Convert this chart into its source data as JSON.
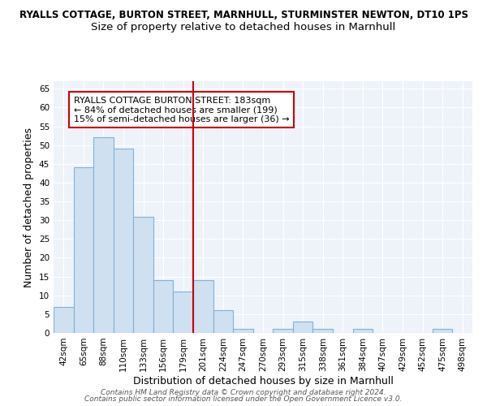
{
  "title": "RYALLS COTTAGE, BURTON STREET, MARNHULL, STURMINSTER NEWTON, DT10 1PS",
  "subtitle": "Size of property relative to detached houses in Marnhull",
  "xlabel": "Distribution of detached houses by size in Marnhull",
  "ylabel": "Number of detached properties",
  "categories": [
    "42sqm",
    "65sqm",
    "88sqm",
    "110sqm",
    "133sqm",
    "156sqm",
    "179sqm",
    "201sqm",
    "224sqm",
    "247sqm",
    "270sqm",
    "293sqm",
    "315sqm",
    "338sqm",
    "361sqm",
    "384sqm",
    "407sqm",
    "429sqm",
    "452sqm",
    "475sqm",
    "498sqm"
  ],
  "values": [
    7,
    44,
    52,
    49,
    31,
    14,
    11,
    14,
    6,
    1,
    0,
    1,
    3,
    1,
    0,
    1,
    0,
    0,
    0,
    1,
    0
  ],
  "bar_color": "#cfe0f0",
  "bar_edge_color": "#7fb2d8",
  "red_line_x": 6.5,
  "red_line_color": "#cc0000",
  "annotation_text": "RYALLS COTTAGE BURTON STREET: 183sqm\n← 84% of detached houses are smaller (199)\n15% of semi-detached houses are larger (36) →",
  "annotation_box_color": "white",
  "annotation_box_edge_color": "#cc0000",
  "ylim": [
    0,
    67
  ],
  "yticks": [
    0,
    5,
    10,
    15,
    20,
    25,
    30,
    35,
    40,
    45,
    50,
    55,
    60,
    65
  ],
  "footer_line1": "Contains HM Land Registry data © Crown copyright and database right 2024.",
  "footer_line2": "Contains public sector information licensed under the Open Government Licence v3.0.",
  "bg_color": "#eef3fa",
  "title_fontsize": 8.5,
  "subtitle_fontsize": 9.5,
  "axis_label_fontsize": 9,
  "tick_fontsize": 7.5,
  "annotation_fontsize": 8,
  "footer_fontsize": 6.5
}
